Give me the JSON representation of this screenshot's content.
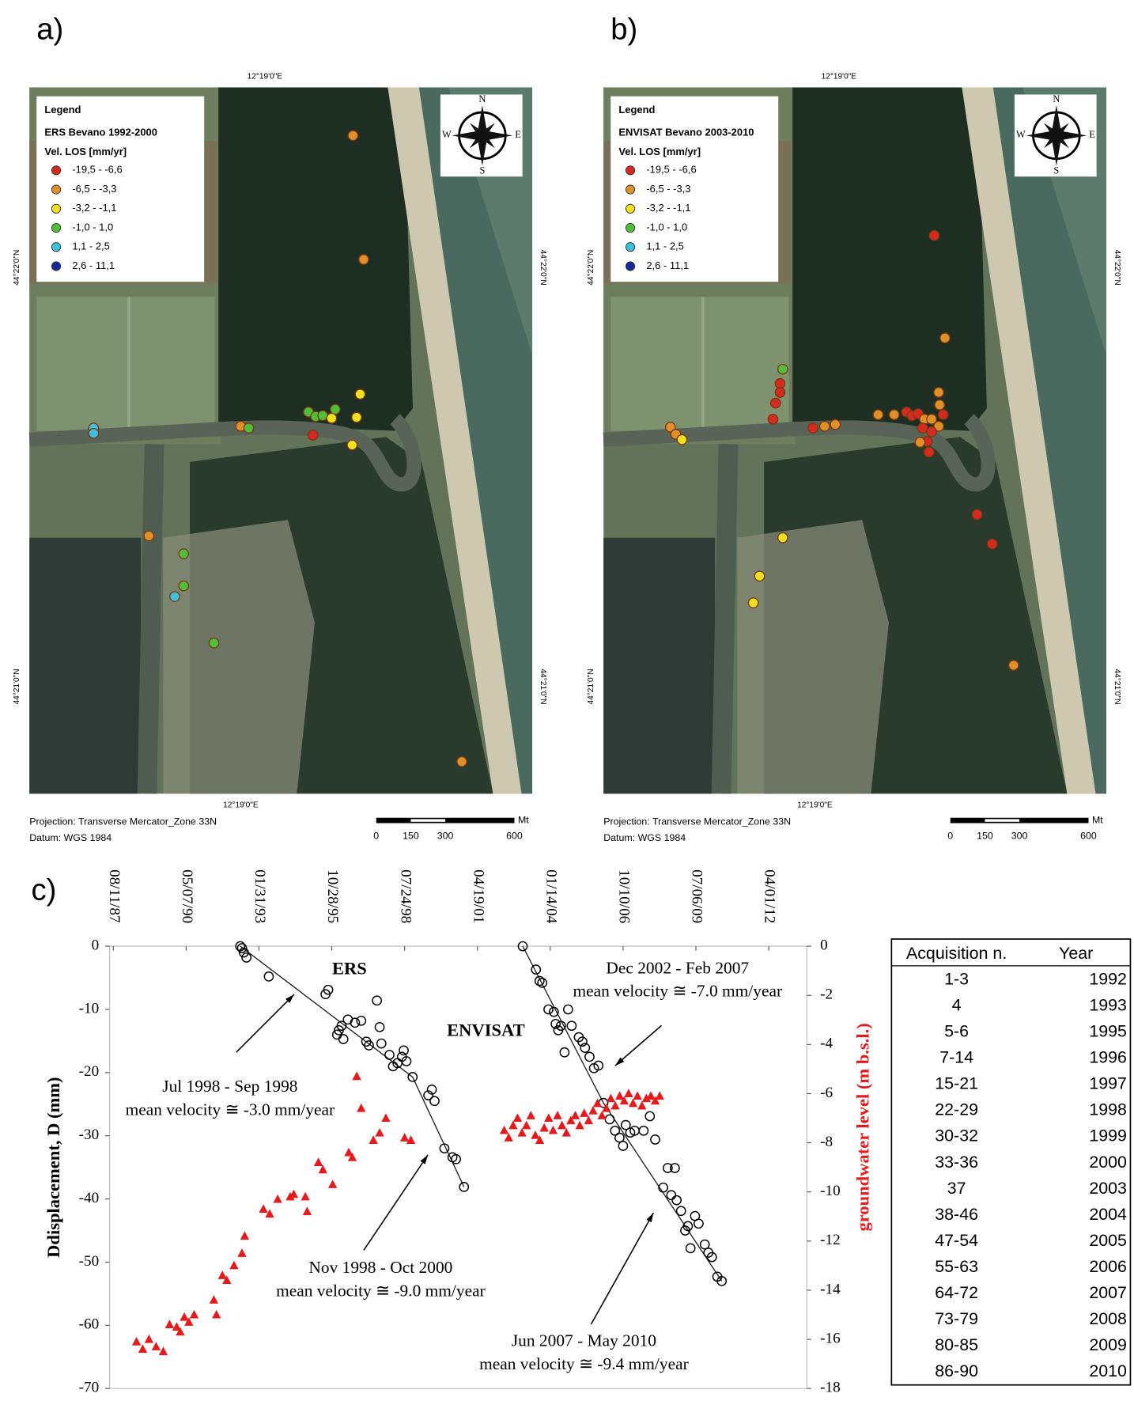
{
  "panel_a": {
    "label": "a)",
    "legend": {
      "title": "Legend",
      "dataset": "ERS Bevano 1992-2000",
      "unit": "Vel. LOS [mm/yr]",
      "classes": [
        {
          "label": "-19,5 - -6,6",
          "color": "#d42a1f"
        },
        {
          "label": "-6,5 - -3,3",
          "color": "#e0902a"
        },
        {
          "label": "-3,2 - -1,1",
          "color": "#f0e020"
        },
        {
          "label": "-1,0 - 1,0",
          "color": "#4fbf3a"
        },
        {
          "label": "1,1 - 2,5",
          "color": "#3fc0e0"
        },
        {
          "label": "2,6 - 11,1",
          "color": "#142a9a"
        }
      ]
    },
    "compass": {
      "n": "N",
      "e": "E",
      "s": "S",
      "w": "W"
    },
    "top_coord": "12°19'0\"E",
    "bottom_coord": "12°19'0\"E",
    "left_coords": [
      "44°22'0\"N",
      "44°21'0\"N"
    ],
    "right_coords": [
      "44°22'0\"N",
      "44°21'0\"N"
    ],
    "projection": "Projection: Transverse Mercator_Zone 33N",
    "datum": "Datum: WGS 1984",
    "scale_bar": {
      "ticks": [
        0,
        150,
        300,
        600
      ],
      "unit": "Mt"
    }
  },
  "panel_b": {
    "label": "b)",
    "legend": {
      "title": "Legend",
      "dataset": "ENVISAT Bevano 2003-2010",
      "unit": "Vel. LOS [mm/yr]",
      "classes": [
        {
          "label": "-19,5 - -6,6",
          "color": "#d42a1f"
        },
        {
          "label": "-6,5 - -3,3",
          "color": "#e0902a"
        },
        {
          "label": "-3,2 - -1,1",
          "color": "#f0e020"
        },
        {
          "label": "-1,0 - 1,0",
          "color": "#4fbf3a"
        },
        {
          "label": "1,1 - 2,5",
          "color": "#3fc0e0"
        },
        {
          "label": "2,6 - 11,1",
          "color": "#142a9a"
        }
      ]
    },
    "compass": {
      "n": "N",
      "e": "E",
      "s": "S",
      "w": "W"
    },
    "top_coord": "12°19'0\"E",
    "bottom_coord": "12°19'0\"E",
    "left_coords": [
      "44°22'0\"N",
      "44°21'0\"N"
    ],
    "right_coords": [
      "44°22'0\"N",
      "44°21'0\"N"
    ],
    "projection": "Projection: Transverse Mercator_Zone 33N",
    "datum": "Datum: WGS 1984",
    "scale_bar": {
      "ticks": [
        0,
        150,
        300,
        600
      ],
      "unit": "Mt"
    }
  },
  "chart_data": {
    "type": "scatter",
    "label": "c)",
    "xlim": [
      "1987-06-22",
      "2013-09-06"
    ],
    "xticks": [
      {
        "value": "1987-08-11",
        "label": "08/11/87"
      },
      {
        "value": "1990-05-07",
        "label": "05/07/90"
      },
      {
        "value": "1993-01-31",
        "label": "01/31/93"
      },
      {
        "value": "1995-10-28",
        "label": "10/28/95"
      },
      {
        "value": "1998-07-24",
        "label": "07/24/98"
      },
      {
        "value": "2001-04-19",
        "label": "04/19/01"
      },
      {
        "value": "2004-01-14",
        "label": "01/14/04"
      },
      {
        "value": "2006-10-10",
        "label": "10/10/06"
      },
      {
        "value": "2009-07-06",
        "label": "07/06/09"
      },
      {
        "value": "2012-04-01",
        "label": "04/01/12"
      }
    ],
    "ylim": [
      -70,
      0
    ],
    "yticks": [
      0,
      -10,
      -20,
      -30,
      -40,
      -50,
      -60,
      -70
    ],
    "y2lim": [
      -18,
      0
    ],
    "y2ticks": [
      0,
      -2,
      -4,
      -6,
      -8,
      -10,
      -12,
      -14,
      -16,
      -18
    ],
    "ylabel": "Ddisplacement, D (mm)",
    "y2label": "groundwater level (m b.s.l.)",
    "series": [
      {
        "name": "ERS",
        "color": "#000000",
        "marker": "circle",
        "x": [
          "1992-05-19",
          "1992-06-12",
          "1992-07-07",
          "1992-08-12",
          "1993-06-15",
          "1995-08-03",
          "1995-09-09",
          "1996-01-09",
          "1996-02-02",
          "1996-03-11",
          "1996-04-04",
          "1996-06-05",
          "1996-09-11",
          "1996-12-05",
          "1997-02-12",
          "1997-03-21",
          "1997-07-09",
          "1997-08-15",
          "1997-09-08",
          "1997-12-28",
          "1998-02-15",
          "1998-04-17",
          "1998-06-17",
          "1998-07-12",
          "1998-08-18",
          "1998-11-11",
          "1999-06-14",
          "1999-08-02",
          "1999-09-08",
          "2000-01-21",
          "2000-05-11",
          "2000-06-29",
          "2000-10-17"
        ],
        "values": [
          0,
          -0.3,
          -1.0,
          -1.8,
          -4.8,
          -7.6,
          -6.9,
          -14.0,
          -13.3,
          -12.6,
          -14.7,
          -11.6,
          -12.1,
          -11.8,
          -15.1,
          -15.7,
          -8.6,
          -12.8,
          -15.4,
          -17.2,
          -19.0,
          -18.5,
          -17.5,
          -16.5,
          -18.2,
          -20.7,
          -23.6,
          -22.7,
          -24.5,
          -32.0,
          -33.4,
          -33.7,
          -38.1
        ]
      },
      {
        "name": "ENVISAT",
        "color": "#000000",
        "marker": "circle",
        "x": [
          "2003-01-01",
          "2003-07-02",
          "2003-08-20",
          "2003-09-26",
          "2003-12-20",
          "2004-03-03",
          "2004-03-28",
          "2004-05-03",
          "2004-06-09",
          "2004-07-28",
          "2004-09-15",
          "2004-11-03",
          "2005-02-09",
          "2005-03-30",
          "2005-05-06",
          "2005-07-06",
          "2005-09-05",
          "2005-11-06",
          "2006-01-13",
          "2006-04-09",
          "2006-06-22",
          "2006-08-22",
          "2006-10-10",
          "2006-11-16",
          "2007-01-16",
          "2007-03-18",
          "2007-07-19",
          "2007-10-13",
          "2007-12-25",
          "2008-04-13",
          "2008-06-14",
          "2008-08-02",
          "2008-09-20",
          "2008-10-14",
          "2008-12-14",
          "2009-02-09",
          "2009-03-18",
          "2009-04-23",
          "2009-06-24",
          "2009-08-12",
          "2009-11-05",
          "2009-12-24",
          "2010-02-11",
          "2010-04-26",
          "2010-06-26"
        ],
        "values": [
          0,
          -3.7,
          -5.5,
          -5.8,
          -10.0,
          -10.4,
          -12.3,
          -13.3,
          -12.6,
          -16.8,
          -10.0,
          -12.6,
          -14.4,
          -15.1,
          -16.1,
          -17.5,
          -19.3,
          -18.9,
          -24.8,
          -27.4,
          -29.2,
          -30.3,
          -31.6,
          -28.3,
          -29.5,
          -29.2,
          -29.2,
          -26.9,
          -30.6,
          -38.2,
          -35.1,
          -39.4,
          -35.1,
          -40.2,
          -41.9,
          -45.0,
          -44.3,
          -47.8,
          -42.7,
          -43.9,
          -47.2,
          -48.5,
          -49.2,
          -52.3,
          -53.0
        ]
      },
      {
        "color": "#e8191b",
        "marker": "triangle",
        "axis": "y2",
        "x": [
          "1988-06-24",
          "1988-09-18",
          "1988-12-13",
          "1989-03-21",
          "1989-06-27",
          "1989-09-21",
          "1989-12-28",
          "1990-02-15",
          "1990-04-12",
          "1990-06-13",
          "1990-08-25",
          "1991-05-22",
          "1991-06-27",
          "1991-09-17",
          "1991-11-17",
          "1992-02-23",
          "1992-06-12",
          "1992-07-19",
          "1993-04-02",
          "1993-06-27",
          "1993-10-15",
          "1994-04-05",
          "1994-05-24",
          "1994-10-30",
          "1994-11-24",
          "1995-04-27",
          "1995-06-28",
          "1995-11-09",
          "1996-06-17",
          "1996-08-05",
          "1996-10-05",
          "1996-12-05",
          "1997-05-21",
          "1997-08-15",
          "1997-11-09",
          "1998-07-24",
          "1998-10-18",
          "2002-04-22",
          "2002-06-22",
          "2002-08-22",
          "2002-10-22",
          "2002-12-22",
          "2003-02-21",
          "2003-04-23",
          "2003-06-23",
          "2003-08-23",
          "2003-10-23",
          "2003-12-23",
          "2004-02-22",
          "2004-04-23",
          "2004-06-23",
          "2004-08-23",
          "2004-10-23",
          "2004-12-23",
          "2005-02-22",
          "2005-04-24",
          "2005-06-24",
          "2005-08-24",
          "2005-10-24",
          "2005-12-24",
          "2006-02-23",
          "2006-04-25",
          "2006-06-25",
          "2006-08-25",
          "2006-10-25",
          "2006-12-25",
          "2007-02-24",
          "2007-04-26",
          "2007-06-26",
          "2007-08-26",
          "2007-10-26",
          "2007-12-26",
          "2008-02-25"
        ],
        "values": [
          -16.1,
          -16.4,
          -16.0,
          -16.3,
          -16.5,
          -15.4,
          -15.5,
          -15.7,
          -15.1,
          -15.3,
          -15.0,
          -14.4,
          -15.0,
          -13.4,
          -13.6,
          -13.0,
          -12.5,
          -11.8,
          -10.7,
          -10.9,
          -10.3,
          -10.2,
          -10.1,
          -10.2,
          -10.8,
          -8.8,
          -9.1,
          -9.7,
          -8.4,
          -8.6,
          -5.3,
          -6.6,
          -7.9,
          -7.6,
          -7.0,
          -7.8,
          -7.9,
          -7.5,
          -7.8,
          -7.3,
          -7.0,
          -7.6,
          -7.3,
          -6.9,
          -7.7,
          -7.9,
          -7.4,
          -7.0,
          -7.5,
          -6.9,
          -7.3,
          -7.6,
          -7.1,
          -6.9,
          -7.3,
          -6.8,
          -7.1,
          -6.7,
          -6.4,
          -6.9,
          -6.6,
          -6.2,
          -6.5,
          -6.1,
          -6.3,
          -6.0,
          -6.4,
          -6.1,
          -6.5,
          -6.2,
          -6.1,
          -6.3,
          -6.1
        ]
      }
    ],
    "annotations": [
      {
        "lines": [
          "Jul 1998 - Sep 1998",
          "mean velocity ≅ -3.0 mm/year"
        ]
      },
      {
        "lines": [
          "Dec 2002 - Feb 2007",
          "mean velocity ≅ -7.0 mm/year"
        ]
      },
      {
        "lines": [
          "Nov 1998 - Oct 2000",
          "mean velocity ≅ -9.0 mm/year"
        ]
      },
      {
        "lines": [
          "Jun 2007 - May 2010",
          "mean velocity ≅ -9.4 mm/year"
        ]
      }
    ]
  },
  "table": {
    "header": [
      "Acquisition n.",
      "Year"
    ],
    "rows": [
      [
        "1-3",
        1992
      ],
      [
        "4",
        1993
      ],
      [
        "5-6",
        1995
      ],
      [
        "7-14",
        1996
      ],
      [
        "15-21",
        1997
      ],
      [
        "22-29",
        1998
      ],
      [
        "30-32",
        1999
      ],
      [
        "33-36",
        2000
      ],
      [
        "37",
        2003
      ],
      [
        "38-46",
        2004
      ],
      [
        "47-54",
        2005
      ],
      [
        "55-63",
        2006
      ],
      [
        "64-72",
        2007
      ],
      [
        "73-79",
        2008
      ],
      [
        "80-85",
        2009
      ],
      [
        "86-90",
        2010
      ]
    ]
  }
}
